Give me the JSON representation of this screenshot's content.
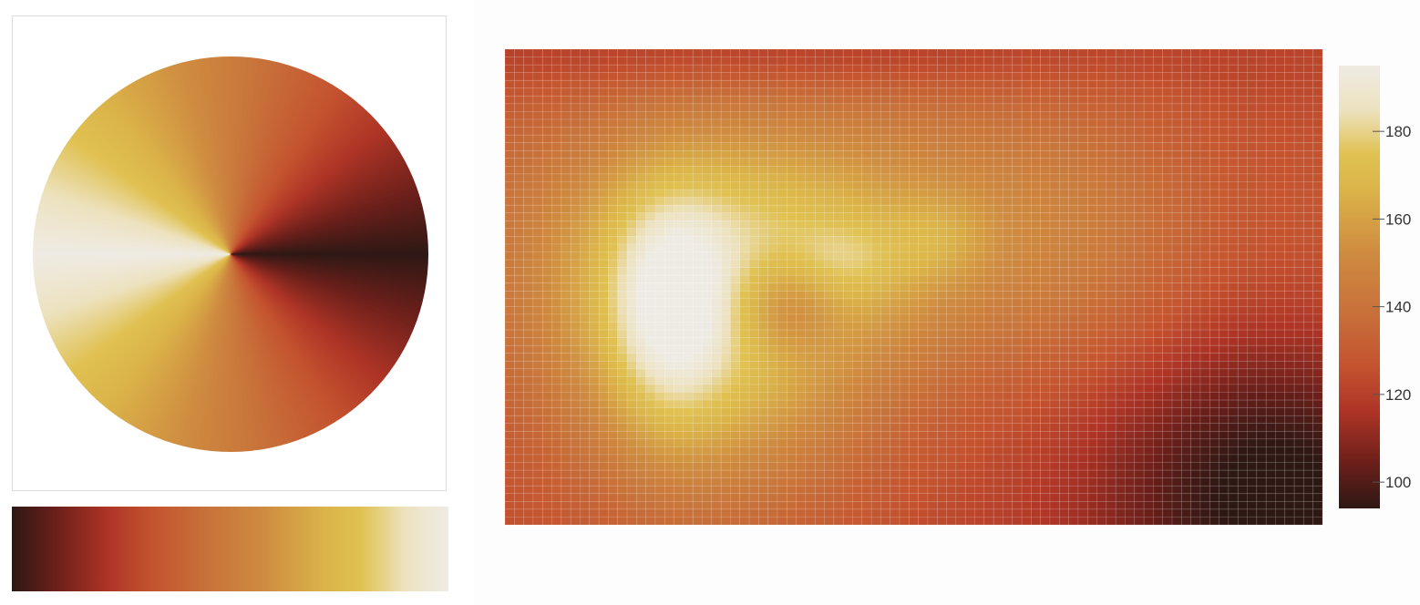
{
  "colors": {
    "stops": [
      {
        "t": 0.0,
        "c": "#2e1814"
      },
      {
        "t": 0.1,
        "c": "#6b1f1a"
      },
      {
        "t": 0.22,
        "c": "#ae3426"
      },
      {
        "t": 0.32,
        "c": "#c4532f"
      },
      {
        "t": 0.45,
        "c": "#c8723a"
      },
      {
        "t": 0.58,
        "c": "#cf8c40"
      },
      {
        "t": 0.72,
        "c": "#dbb449"
      },
      {
        "t": 0.8,
        "c": "#e0c152"
      },
      {
        "t": 0.9,
        "c": "#ede2bf"
      },
      {
        "t": 1.0,
        "c": "#eeebe4"
      }
    ]
  },
  "chart_data": {
    "type": "heatmap",
    "colorbar": {
      "min": 94,
      "max": 195,
      "ticks": [
        100,
        120,
        140,
        160,
        180
      ],
      "tick_labels": [
        "100",
        "120",
        "140",
        "160",
        "180"
      ]
    },
    "grid": {
      "cols": 87,
      "rows": 61
    },
    "field": {
      "base": 122,
      "blobs": [
        {
          "cx": 0.46,
          "cy": 0.62,
          "sx": 0.36,
          "sy": 0.22,
          "a": 32
        },
        {
          "cx": 0.25,
          "cy": 0.4,
          "sx": 0.14,
          "sy": 0.26,
          "a": 45
        },
        {
          "cx": 0.2,
          "cy": 0.45,
          "sx": 0.05,
          "sy": 0.18,
          "a": 24
        },
        {
          "cx": 0.34,
          "cy": 0.46,
          "sx": 0.05,
          "sy": 0.08,
          "a": -26
        },
        {
          "cx": 0.42,
          "cy": 0.56,
          "sx": 0.05,
          "sy": 0.06,
          "a": 12
        },
        {
          "cx": 0.53,
          "cy": 0.6,
          "sx": 0.04,
          "sy": 0.06,
          "a": 10
        },
        {
          "cx": 0.95,
          "cy": 0.05,
          "sx": 0.16,
          "sy": 0.22,
          "a": -30
        },
        {
          "cx": 0.9,
          "cy": 0.55,
          "sx": 0.1,
          "sy": 0.3,
          "a": -8
        },
        {
          "cx": 0.35,
          "cy": 0.98,
          "sx": 0.3,
          "sy": 0.05,
          "a": -10
        }
      ]
    }
  }
}
